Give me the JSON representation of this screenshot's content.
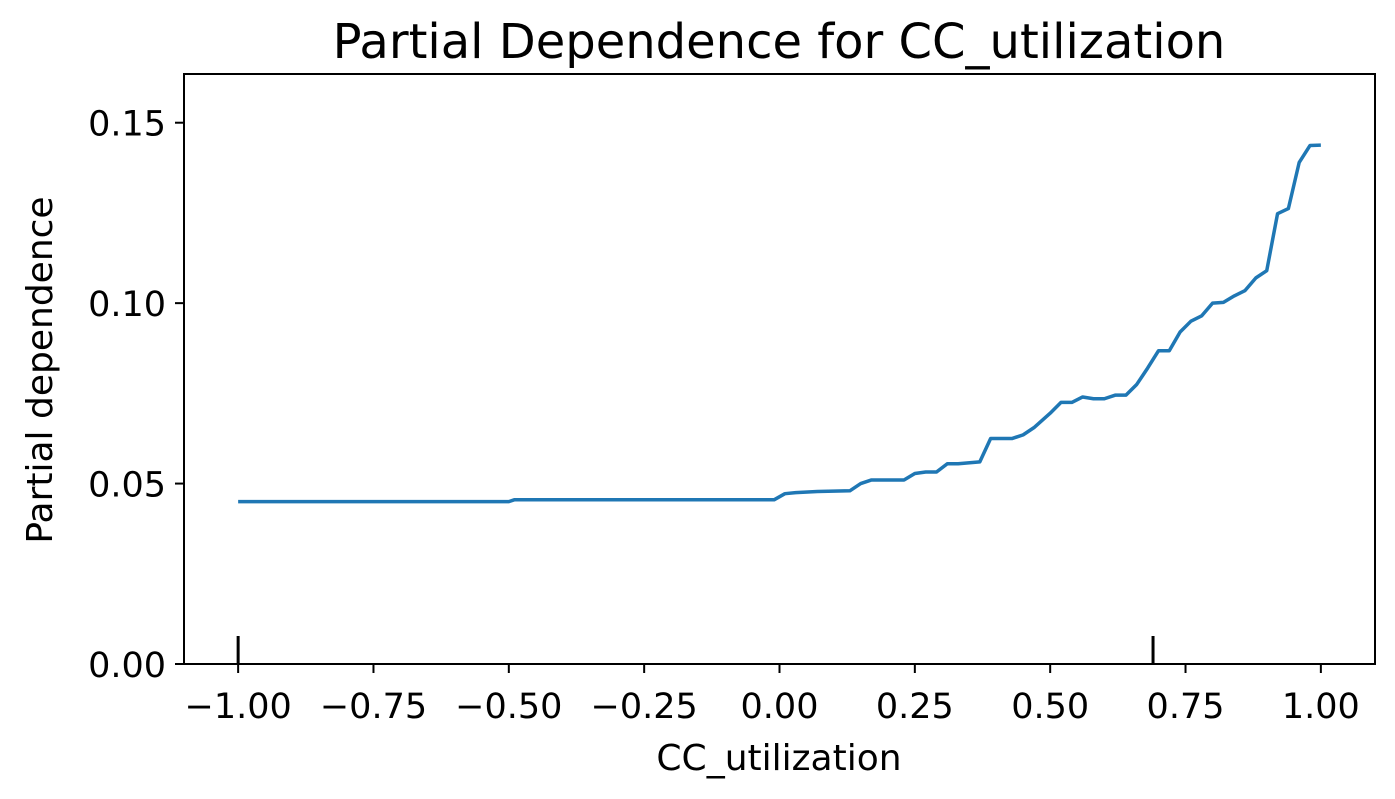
{
  "chart_data": {
    "type": "line",
    "title": "Partial Dependence for CC_utilization",
    "xlabel": "CC_utilization",
    "ylabel": "Partial dependence",
    "xlim": [
      -1.1,
      1.1
    ],
    "ylim": [
      0,
      0.1635
    ],
    "xticks": [
      -1.0,
      -0.75,
      -0.5,
      -0.25,
      0.0,
      0.25,
      0.5,
      0.75,
      1.0
    ],
    "xtick_labels": [
      "−1.00",
      "−0.75",
      "−0.50",
      "−0.25",
      "0.00",
      "0.25",
      "0.50",
      "0.75",
      "1.00"
    ],
    "yticks": [
      0.0,
      0.05,
      0.1,
      0.15
    ],
    "ytick_labels": [
      "0.00",
      "0.05",
      "0.10",
      "0.15"
    ],
    "rug_deciles": [
      -1.0,
      0.69
    ],
    "grid": false,
    "legend": "none",
    "colors": {
      "line": "#1f77b4",
      "axes": "#000000"
    },
    "series": [
      {
        "x": [
          -1.0,
          -0.5,
          -0.49,
          -0.01,
          0.01,
          0.03,
          0.07,
          0.13,
          0.15,
          0.17,
          0.19,
          0.23,
          0.25,
          0.27,
          0.29,
          0.31,
          0.33,
          0.37,
          0.39,
          0.43,
          0.45,
          0.47,
          0.5,
          0.52,
          0.54,
          0.56,
          0.58,
          0.6,
          0.62,
          0.64,
          0.66,
          0.68,
          0.7,
          0.72,
          0.74,
          0.76,
          0.78,
          0.8,
          0.82,
          0.84,
          0.86,
          0.88,
          0.9,
          0.92,
          0.94,
          0.96,
          0.98,
          1.0
        ],
        "y": [
          0.045,
          0.045,
          0.0455,
          0.0455,
          0.0472,
          0.0475,
          0.0478,
          0.048,
          0.05,
          0.051,
          0.051,
          0.051,
          0.0528,
          0.0532,
          0.0532,
          0.0555,
          0.0555,
          0.056,
          0.0625,
          0.0625,
          0.0635,
          0.0655,
          0.0695,
          0.0725,
          0.0725,
          0.074,
          0.0735,
          0.0735,
          0.0745,
          0.0745,
          0.0775,
          0.082,
          0.0868,
          0.0868,
          0.092,
          0.095,
          0.0965,
          0.1,
          0.1002,
          0.102,
          0.1035,
          0.107,
          0.109,
          0.1248,
          0.1262,
          0.139,
          0.1437,
          0.1438
        ]
      }
    ]
  }
}
